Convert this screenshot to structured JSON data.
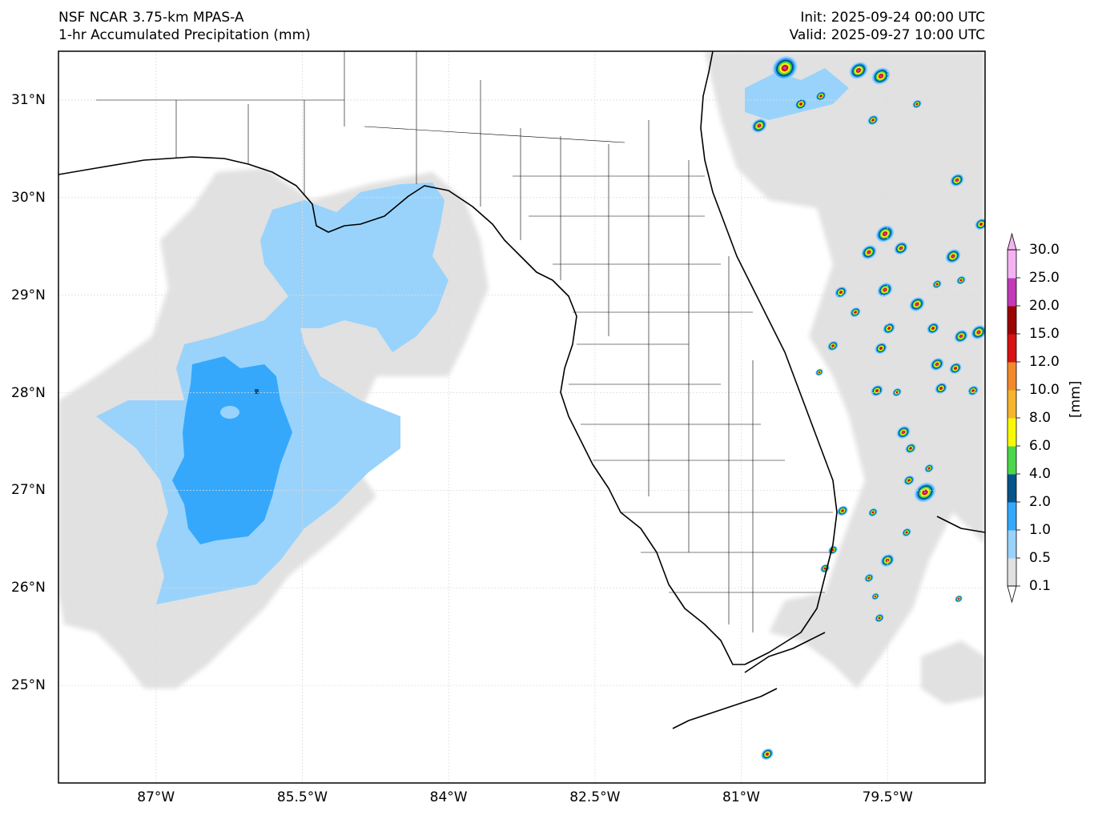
{
  "header": {
    "model": "NSF NCAR 3.75-km MPAS-A",
    "field": "1-hr Accumulated Precipitation (mm)",
    "init": "Init: 2025-09-24 00:00 UTC",
    "valid": "Valid: 2025-09-27 10:00 UTC"
  },
  "axes": {
    "lon_ticks": [
      "87°W",
      "85.5°W",
      "84°W",
      "82.5°W",
      "81°W",
      "79.5°W"
    ],
    "lat_ticks": [
      "31°N",
      "30°N",
      "29°N",
      "28°N",
      "27°N",
      "26°N",
      "25°N"
    ],
    "lon_range": [
      -88.0,
      -78.5
    ],
    "lat_range": [
      24.0,
      31.5
    ]
  },
  "colorbar": {
    "unit": "[mm]",
    "levels": [
      "0.1",
      "0.5",
      "1.0",
      "2.0",
      "4.0",
      "6.0",
      "8.0",
      "10.0",
      "12.0",
      "15.0",
      "20.0",
      "25.0",
      "30.0"
    ],
    "colors": [
      "#e1e1e1",
      "#99d3fb",
      "#35a8fc",
      "#05558a",
      "#4cd64d",
      "#f9f905",
      "#f5b52e",
      "#f18a2c",
      "#d61212",
      "#9c0303",
      "#c13ab8",
      "#f3b3f0"
    ]
  }
}
